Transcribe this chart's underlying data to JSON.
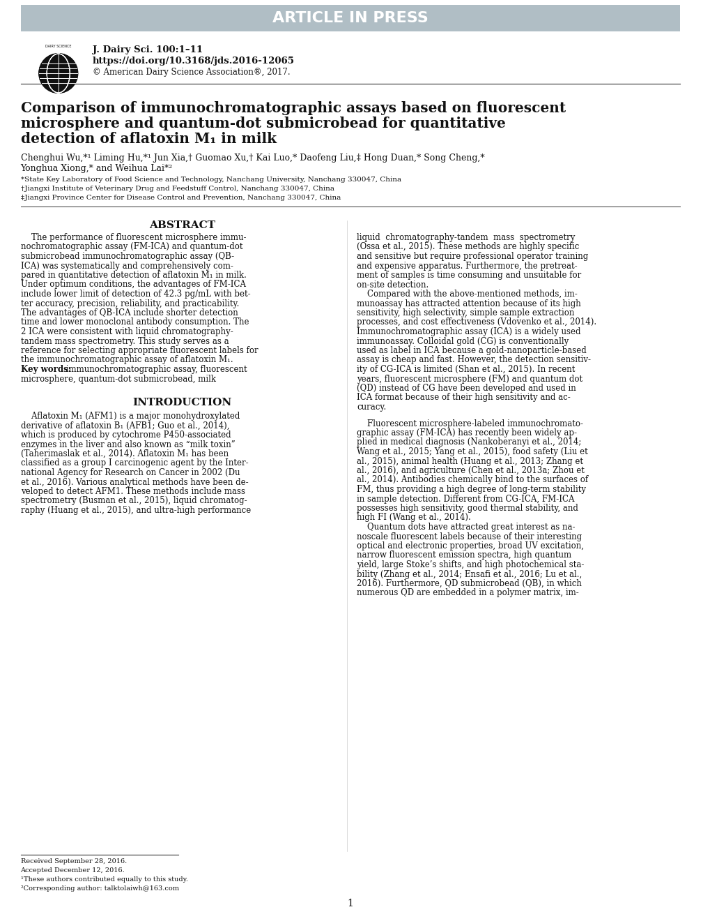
{
  "bg_color": "#ffffff",
  "header_bar_color": "#b0bec5",
  "header_text": "ARTICLE IN PRESS",
  "header_text_color": "#ffffff",
  "journal_line1": "J. Dairy Sci. 100:1–11",
  "journal_line2": "https://doi.org/10.3168/jds.2016-12065",
  "journal_line3": "© American Dairy Science Association®, 2017.",
  "article_title_line1": "Comparison of immunochromatographic assays based on fluorescent",
  "article_title_line2": "microsphere and quantum-dot submicrobead for quantitative",
  "article_title_line3": "detection of aflatoxin M₁ in milk",
  "authors_line1": "Chenghui Wu,*¹ Liming Hu,*¹ Jun Xia,† Guomao Xu,† Kai Luo,* Daofeng Liu,‡ Hong Duan,* Song Cheng,*",
  "authors_line2": "Yonghua Xiong,* and Weihua Lai*²",
  "affil1": "*State Key Laboratory of Food Science and Technology, Nanchang University, Nanchang 330047, China",
  "affil2": "†Jiangxi Institute of Veterinary Drug and Feedstuff Control, Nanchang 330047, China",
  "affil3": "‡Jiangxi Province Center for Disease Control and Prevention, Nanchang 330047, China",
  "abstract_title": "ABSTRACT",
  "abstract_left": "    The performance of fluorescent microsphere immunochromatographic assay (FM-ICA) and quantum-dot submicrobead immunochromatographic assay (QB-ICA) was systematically and comprehensively compared in quantitative detection of aflatoxin M₁ in milk. Under optimum conditions, the advantages of FM-ICA include lower limit of detection of 42.3 pg/mL with better accuracy, precision, reliability, and practicability. The advantages of QB-ICA include shorter detection time and lower monoclonal antibody consumption. The 2 ICA were consistent with liquid chromatography-tandem mass spectrometry. This study serves as a reference for selecting appropriate fluorescent labels for the immunochromatographic assay of aflatoxin M₁.\n Key words: immunochromatographic assay, fluorescent microsphere, quantum-dot submicrobead, milk",
  "abstract_right": "liquid chromatography-tandem mass spectrometry (Ossa et al., 2015). These methods are highly specific and sensitive but require professional operator training and expensive apparatus. Furthermore, the pretreatment of samples is time consuming and unsuitable for on-site detection.\n    Compared with the above-mentioned methods, immunoassay has attracted attention because of its high sensitivity, high selectivity, simple sample extraction processes, and cost effectiveness (Vdovenko et al., 2014). Immunochromatographic assay (ICA) is a widely used immunoassay. Colloidal gold (CG) is conventionally used as label in ICA because a gold-nanoparticle-based assay is cheap and fast. However, the detection sensitivity of CG-ICA is limited (Shan et al., 2015). In recent years, fluorescent microsphere (FM) and quantum dot (QD) instead of CG have been developed and used in ICA format because of their high sensitivity and accuracy.",
  "intro_title": "INTRODUCTION",
  "intro_left": "    Aflatoxin M₁ (AFM1) is a major monohydroxylated derivative of aflatoxin B₁ (AFB1; Guo et al., 2014), which is produced by cytochrome P450-associated enzymes in the liver and also known as “milk toxin” (Taherimaslak et al., 2014). Aflatoxin M₁ has been classified as a group I carcinogenic agent by the International Agency for Research on Cancer in 2002 (Du et al., 2016). Various analytical methods have been developed to detect AFM1. These methods include mass spectrometry (Busman et al., 2015), liquid chromatography (Huang et al., 2015), and ultra-high performance",
  "intro_right": "    Fluorescent microsphere-labeled immunochromatographic assay (FM-ICA) has recently been widely applied in medical diagnosis (Nankoberanyi et al., 2014; Wang et al., 2015; Yang et al., 2015), food safety (Liu et al., 2015), animal health (Huang et al., 2013; Zhang et al., 2016), and agriculture (Chen et al., 2013a; Zhou et al., 2014). Antibodies chemically bind to the surfaces of FM, thus providing a high degree of long-term stability in sample detection. Different from CG-ICA, FM-ICA possesses high sensitivity, good thermal stability, and high FI (Wang et al., 2014).\n    Quantum dots have attracted great interest as nanoscale fluorescent labels because of their interesting optical and electronic properties, broad UV excitation, narrow fluorescent emission spectra, high quantum yield, large Stoke’s shifts, and high photochemical stability (Zhang et al., 2014; Ensafi et al., 2016; Lu et al., 2016). Furthermore, QD submicrobead (QB), in which numerous QD are embedded in a polymer matrix, im-",
  "footnote1": "Received September 28, 2016.",
  "footnote2": "Accepted December 12, 2016.",
  "footnote3": "¹These authors contributed equally to this study.",
  "footnote4": "²Corresponding author: talktolaiwh@163.com",
  "page_number": "1"
}
